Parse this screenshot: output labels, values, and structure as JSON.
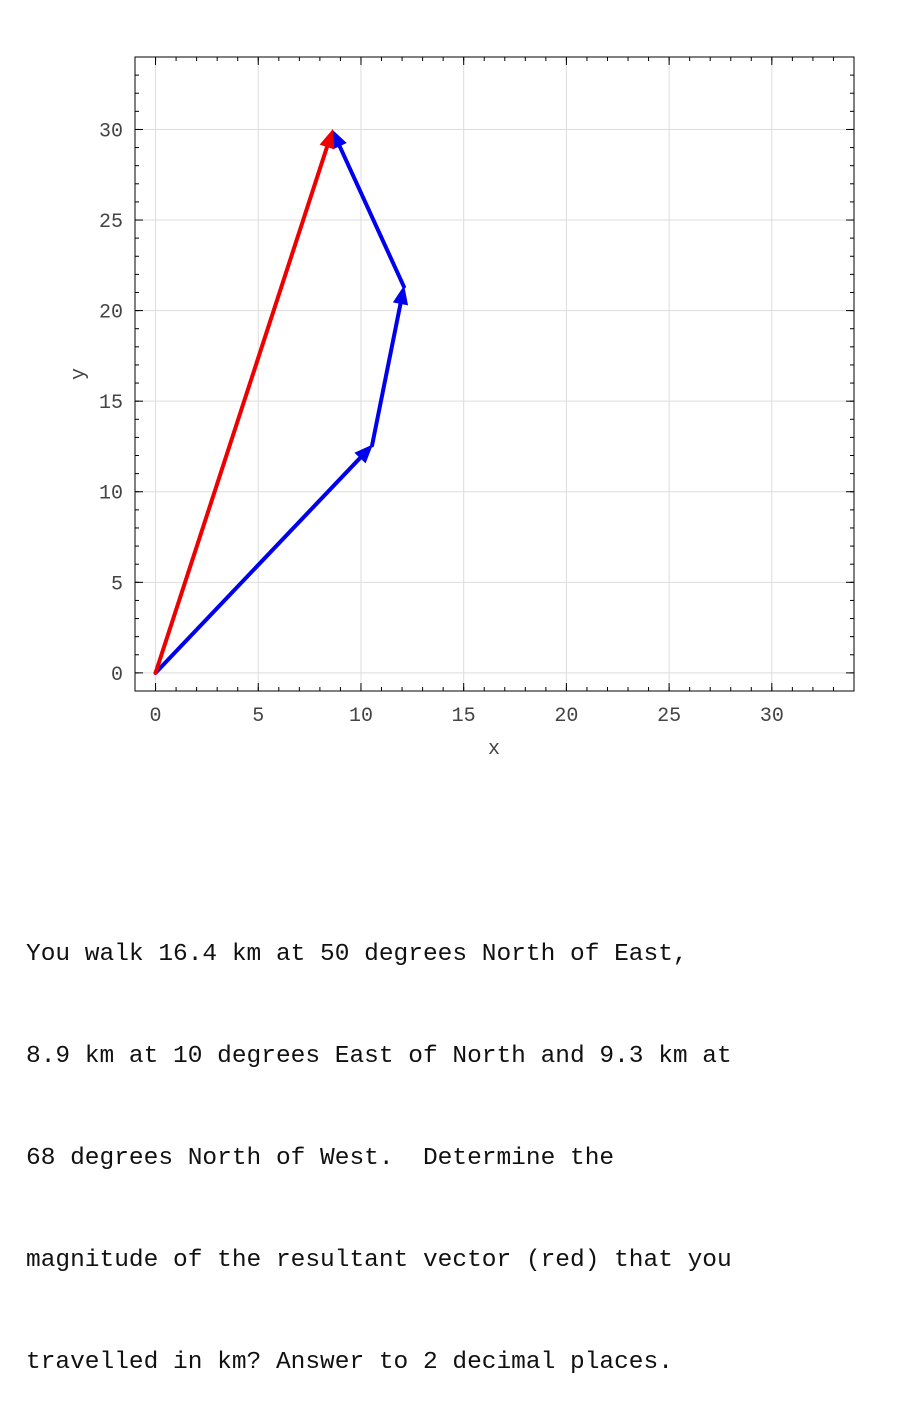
{
  "chart_data": {
    "type": "vector_plot",
    "xlabel": "x",
    "ylabel": "y",
    "xlim": [
      -1,
      34
    ],
    "ylim": [
      -1,
      34
    ],
    "xticks": [
      0,
      5,
      10,
      15,
      20,
      25,
      30
    ],
    "yticks": [
      0,
      5,
      10,
      15,
      20,
      25,
      30
    ],
    "grid": true,
    "vectors": [
      {
        "from": [
          0,
          0
        ],
        "to": [
          10.54,
          12.56
        ],
        "color": "#0000ee"
      },
      {
        "from": [
          10.54,
          12.56
        ],
        "to": [
          12.09,
          21.32
        ],
        "color": "#0000ee"
      },
      {
        "from": [
          12.09,
          21.32
        ],
        "to": [
          8.61,
          29.95
        ],
        "color": "#0000ee"
      },
      {
        "from": [
          0,
          0
        ],
        "to": [
          8.61,
          29.95
        ],
        "color": "#ee0000"
      }
    ]
  },
  "question": {
    "lines": [
      "You walk 16.4 km at 50 degrees North of East,",
      "8.9 km at 10 degrees East of North and 9.3 km at",
      "68 degrees North of West.  Determine the",
      "magnitude of the resultant vector (red) that you",
      "travelled in km? Answer to 2 decimal places."
    ]
  }
}
